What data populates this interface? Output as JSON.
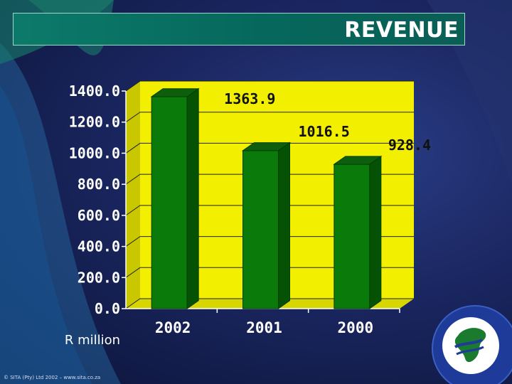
{
  "slide": {
    "title": "REVENUE",
    "footer": "© SITA (Pty) Ltd 2002 – www.sita.co.za"
  },
  "logo": {
    "icon": "africa-map-logo-icon"
  },
  "colors": {
    "plot_bg": "#f2f000",
    "bar": "#0a7a0a",
    "title_bar": "#06685c",
    "background": "#1a2660"
  },
  "chart_data": {
    "type": "bar",
    "categories": [
      "2002",
      "2001",
      "2000"
    ],
    "values": [
      1363.9,
      1016.5,
      928.4
    ],
    "value_labels": [
      "1363.9",
      "1016.5",
      "928.4"
    ],
    "title": "REVENUE",
    "xlabel": "",
    "ylabel": "R million",
    "ylim": [
      0,
      1400
    ],
    "yticks": [
      0,
      200,
      400,
      600,
      800,
      1000,
      1200,
      1400
    ],
    "ytick_labels": [
      "0.0",
      "200.0",
      "400.0",
      "600.0",
      "800.0",
      "1000.0",
      "1200.0",
      "1400.0"
    ],
    "grid": true,
    "legend": "none",
    "style": "3d"
  }
}
